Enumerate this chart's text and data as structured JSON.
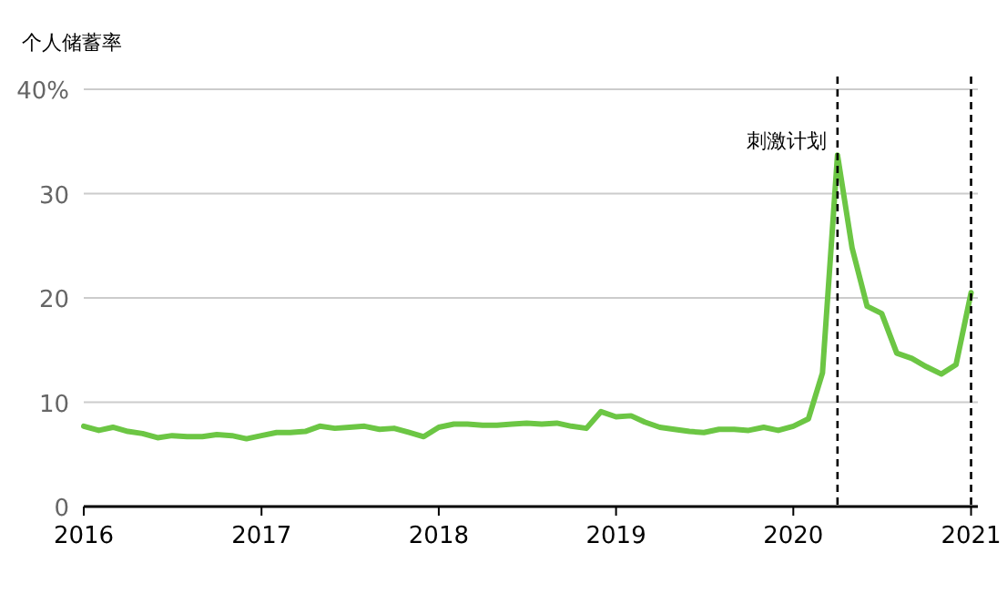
{
  "chart_data": {
    "type": "line",
    "ylabel": "个人储蓄率",
    "x": [
      "2016-01",
      "2016-02",
      "2016-03",
      "2016-04",
      "2016-05",
      "2016-06",
      "2016-07",
      "2016-08",
      "2016-09",
      "2016-10",
      "2016-11",
      "2016-12",
      "2017-01",
      "2017-02",
      "2017-03",
      "2017-04",
      "2017-05",
      "2017-06",
      "2017-07",
      "2017-08",
      "2017-09",
      "2017-10",
      "2017-11",
      "2017-12",
      "2018-01",
      "2018-02",
      "2018-03",
      "2018-04",
      "2018-05",
      "2018-06",
      "2018-07",
      "2018-08",
      "2018-09",
      "2018-10",
      "2018-11",
      "2018-12",
      "2019-01",
      "2019-02",
      "2019-03",
      "2019-04",
      "2019-05",
      "2019-06",
      "2019-07",
      "2019-08",
      "2019-09",
      "2019-10",
      "2019-11",
      "2019-12",
      "2020-01",
      "2020-02",
      "2020-03",
      "2020-04",
      "2020-05",
      "2020-06",
      "2020-07",
      "2020-08",
      "2020-09",
      "2020-10",
      "2020-11",
      "2020-12",
      "2021-01"
    ],
    "series": [
      {
        "color": "#6cc644",
        "values": [
          7.7,
          7.3,
          7.6,
          7.2,
          7.0,
          6.6,
          6.8,
          6.7,
          6.7,
          6.9,
          6.8,
          6.5,
          6.8,
          7.1,
          7.1,
          7.2,
          7.7,
          7.5,
          7.6,
          7.7,
          7.4,
          7.5,
          7.1,
          6.7,
          7.6,
          7.9,
          7.9,
          7.8,
          7.8,
          7.9,
          8.0,
          7.9,
          8.0,
          7.7,
          7.5,
          9.1,
          8.6,
          8.7,
          8.1,
          7.6,
          7.4,
          7.2,
          7.1,
          7.4,
          7.4,
          7.3,
          7.6,
          7.3,
          7.7,
          8.4,
          12.8,
          33.7,
          24.8,
          19.2,
          18.5,
          14.7,
          14.2,
          13.4,
          12.7,
          13.6,
          20.5
        ]
      }
    ],
    "xlim": [
      "2016-01",
      "2021-01-15"
    ],
    "xticks": [
      "2016",
      "2017",
      "2018",
      "2019",
      "2020",
      "2021"
    ],
    "ylim": [
      0,
      40
    ],
    "yticks": [
      0,
      10,
      20,
      30,
      {
        "value": 40,
        "label": "40%"
      }
    ],
    "grid": "y",
    "marker": "none",
    "line_style": "solid",
    "ref_lines": [
      {
        "axis": "x",
        "value": "2020-04",
        "label": "刺激计划",
        "color": "#000000",
        "line_style": "dashed"
      },
      {
        "axis": "x",
        "value": "2021-01",
        "color": "#000000",
        "line_style": "dashed"
      }
    ]
  }
}
